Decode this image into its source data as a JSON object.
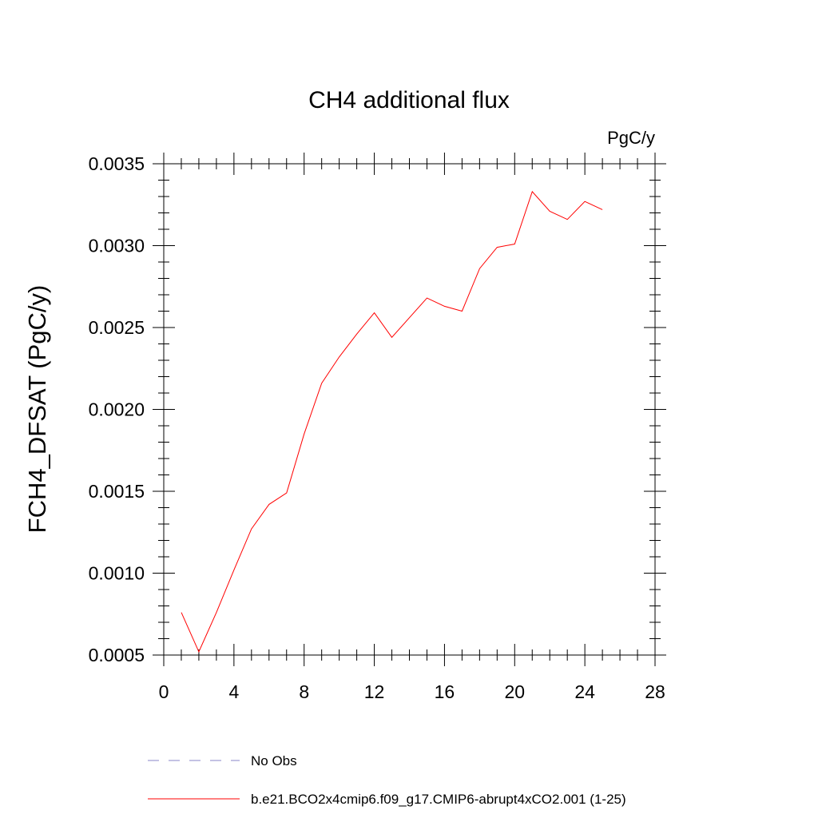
{
  "chart_data": {
    "type": "line",
    "title": "CH4 additional flux",
    "units": "PgC/y",
    "ylabel": "FCH4_DFSAT  (PgC/y)",
    "xlabel": "",
    "xlim": [
      0,
      28
    ],
    "ylim": [
      0.0005,
      0.0035
    ],
    "xticks": [
      0,
      4,
      8,
      12,
      16,
      20,
      24,
      28
    ],
    "yticks": [
      0.0005,
      0.001,
      0.0015,
      0.002,
      0.0025,
      0.003,
      0.0035
    ],
    "xtick_labels": [
      "0",
      "4",
      "8",
      "12",
      "16",
      "20",
      "24",
      "28"
    ],
    "ytick_labels": [
      "0.0005",
      "0.0010",
      "0.0015",
      "0.0020",
      "0.0025",
      "0.0030",
      "0.0035"
    ],
    "grid": false,
    "legend_position": "bottom",
    "series": [
      {
        "name": "No Obs",
        "color": "#8a86c8",
        "style": "dashed",
        "x": [],
        "values": []
      },
      {
        "name": "b.e21.BCO2x4cmip6.f09_g17.CMIP6-abrupt4xCO2.001 (1-25)",
        "color": "#ff0000",
        "style": "solid",
        "x": [
          1,
          2,
          3,
          4,
          5,
          6,
          7,
          8,
          9,
          10,
          11,
          12,
          13,
          14,
          15,
          16,
          17,
          18,
          19,
          20,
          21,
          22,
          23,
          24,
          25
        ],
        "values": [
          0.00076,
          0.00052,
          0.00076,
          0.00102,
          0.00127,
          0.00142,
          0.00149,
          0.00185,
          0.00216,
          0.00232,
          0.00246,
          0.00259,
          0.00244,
          0.00256,
          0.00268,
          0.00263,
          0.0026,
          0.00286,
          0.00299,
          0.00301,
          0.00333,
          0.00321,
          0.00316,
          0.00327,
          0.00322
        ]
      }
    ]
  }
}
